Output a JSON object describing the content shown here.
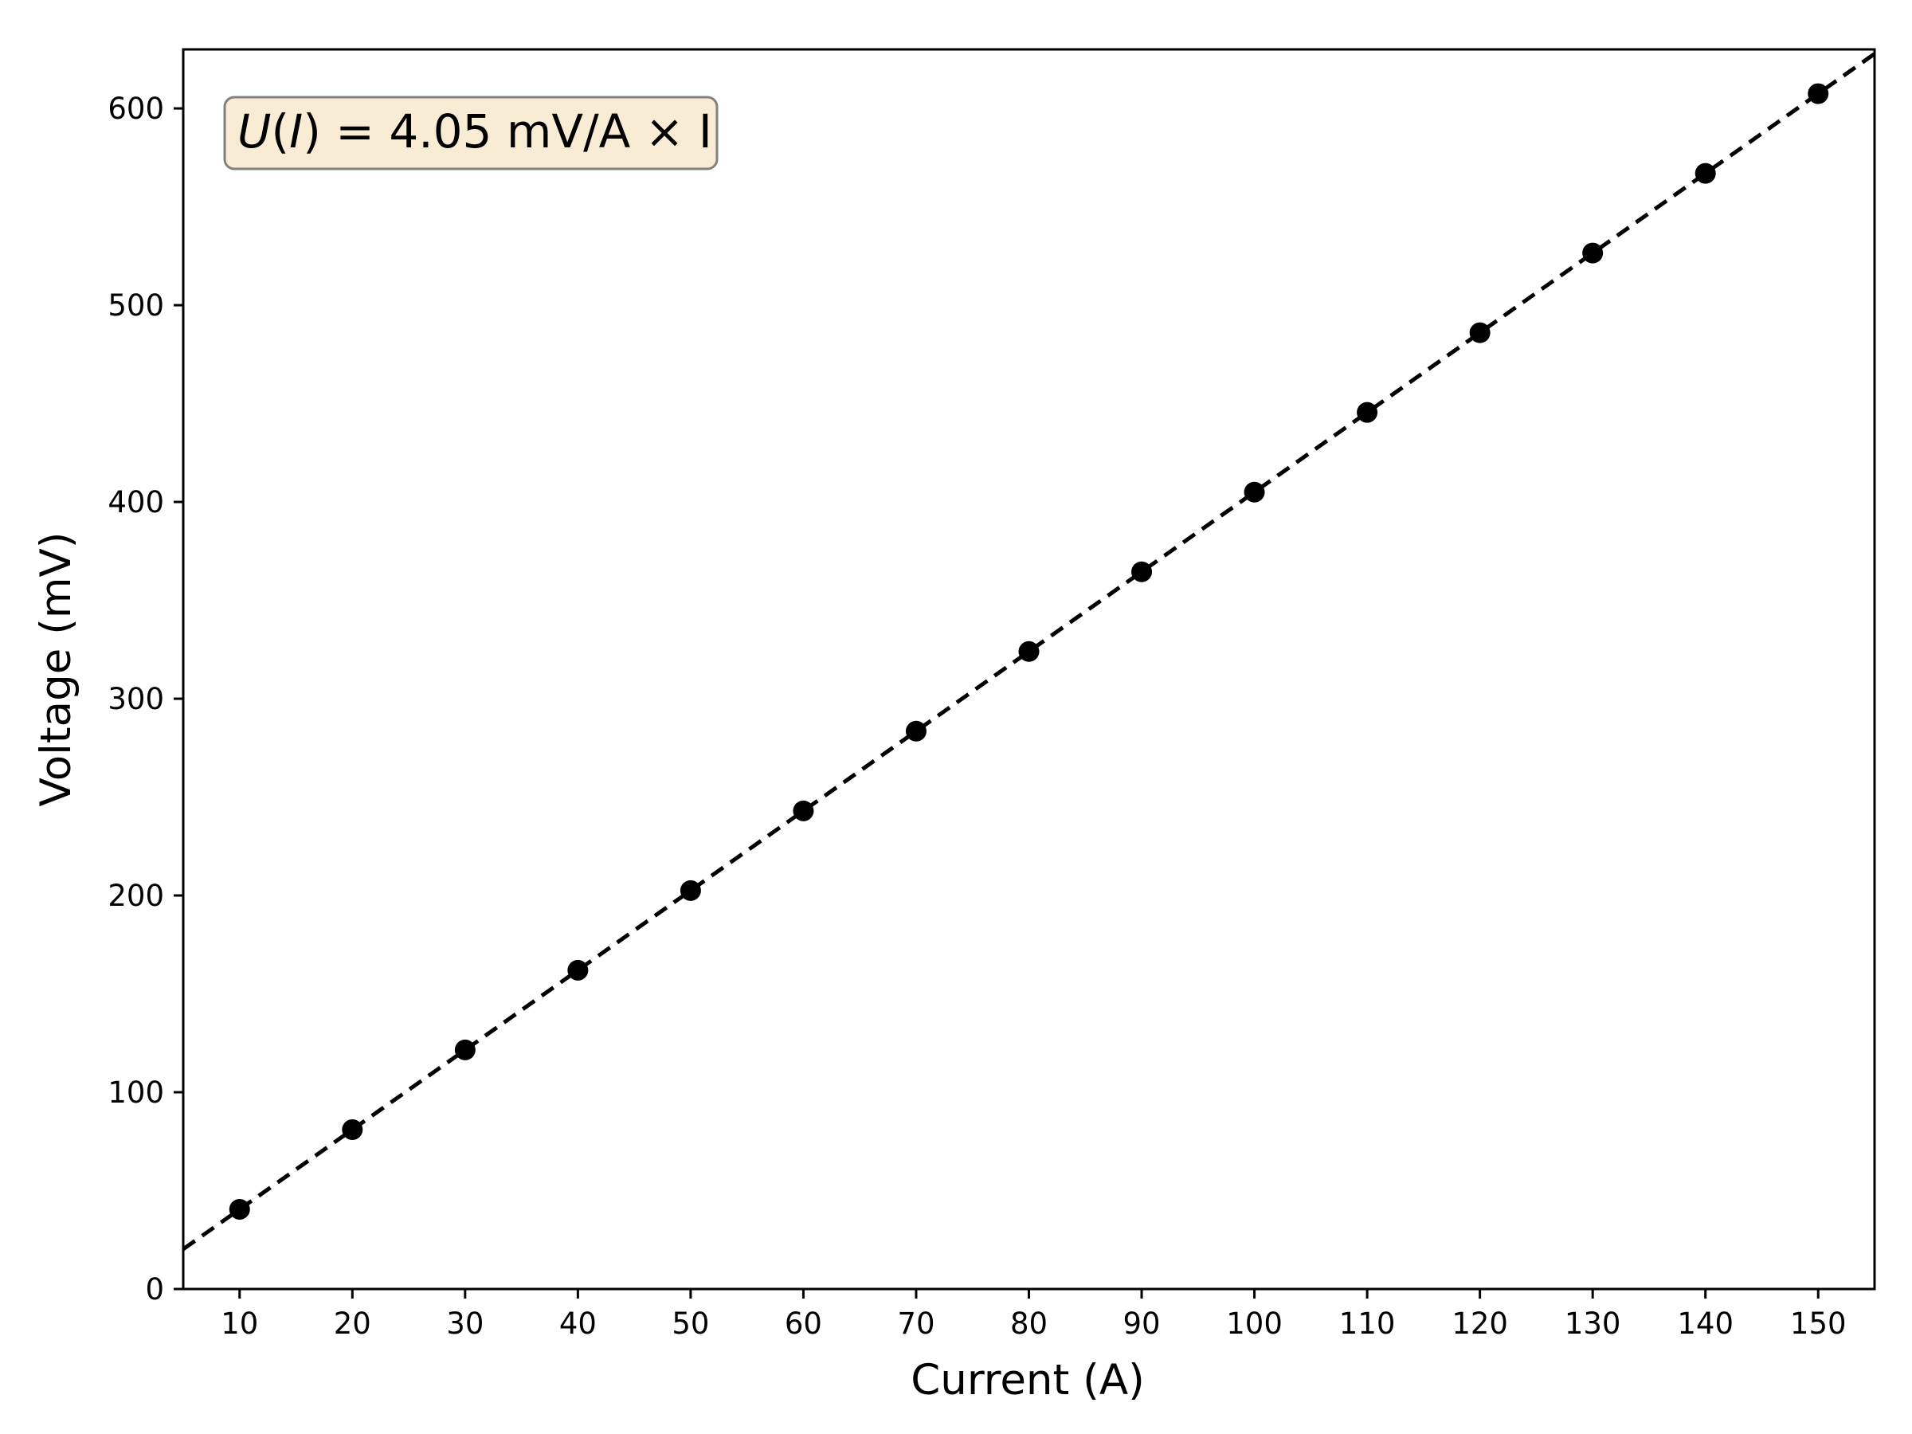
{
  "chart_data": {
    "type": "scatter",
    "xlabel": "Current (A)",
    "ylabel": "Voltage (mV)",
    "xlim": [
      5,
      155
    ],
    "ylim": [
      0,
      630
    ],
    "x_ticks": [
      10,
      20,
      30,
      40,
      50,
      60,
      70,
      80,
      90,
      100,
      110,
      120,
      130,
      140,
      150
    ],
    "y_ticks": [
      0,
      100,
      200,
      300,
      400,
      500,
      600
    ],
    "grid": false,
    "series": [
      {
        "kind": "points",
        "color": "#000000",
        "x": [
          10,
          20,
          30,
          40,
          50,
          60,
          70,
          80,
          90,
          100,
          110,
          120,
          130,
          140,
          150
        ],
        "y": [
          40.5,
          81,
          121.5,
          162,
          202.5,
          243,
          283.5,
          324,
          364.5,
          405,
          445.5,
          486,
          526.5,
          567,
          607.5
        ]
      },
      {
        "kind": "fit-line",
        "style": "dashed",
        "color": "#000000",
        "slope": 4.05,
        "intercept": 0
      }
    ],
    "annotation": {
      "lhs": "U",
      "lhs_arg": "I",
      "rhs": " = 4.05 mV/A × I",
      "position": "top-left",
      "box_fill": "#f8ecd4",
      "box_edge": "#808080"
    }
  }
}
